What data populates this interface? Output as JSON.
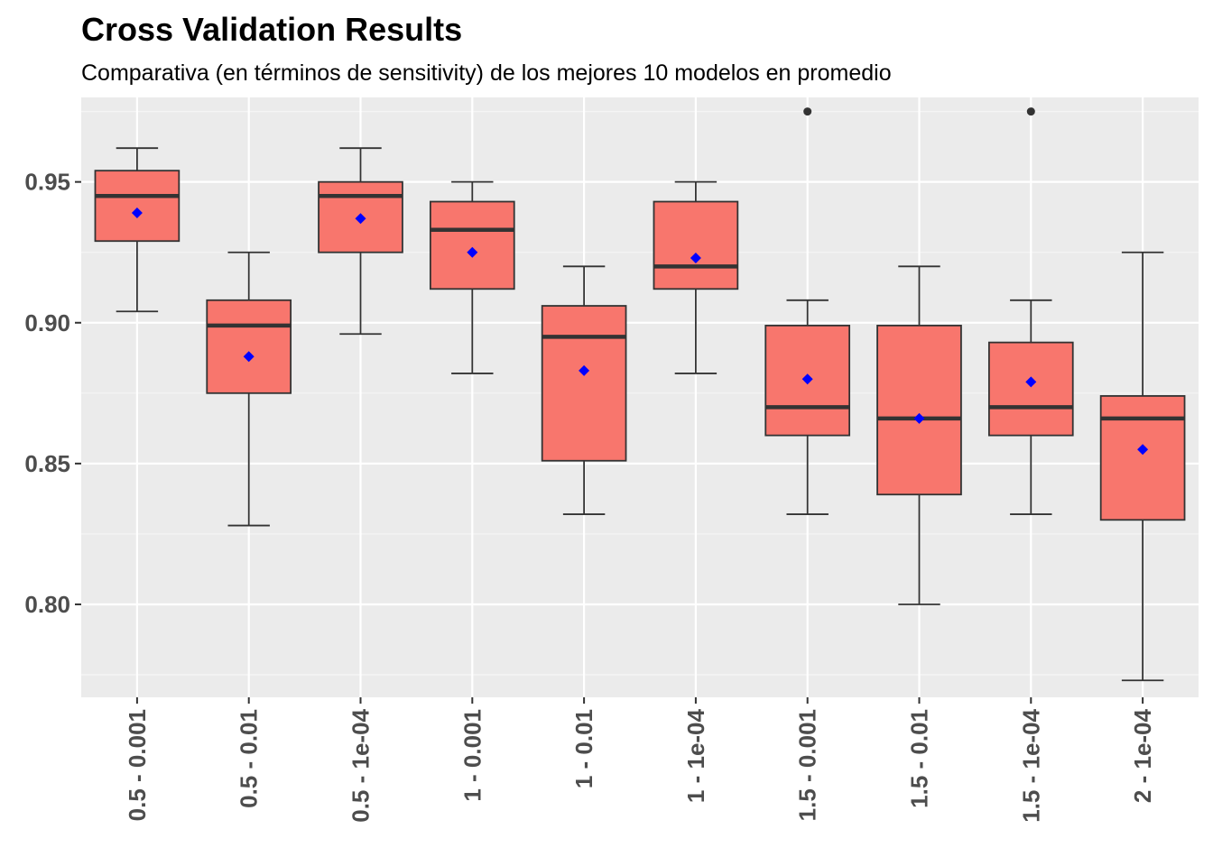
{
  "chart_data": {
    "type": "boxplot",
    "title": "Cross Validation Results",
    "subtitle": "Comparativa (en términos de sensitivity) de los mejores 10 modelos en promedio",
    "xlabel": "",
    "ylabel": "",
    "ylim": [
      0.767,
      0.98
    ],
    "y_ticks": [
      0.8,
      0.85,
      0.9,
      0.95
    ],
    "y_tick_labels": [
      "0.80",
      "0.85",
      "0.90",
      "0.95"
    ],
    "grid": true,
    "legend": "none",
    "categories": [
      "0.5 - 0.001",
      "0.5 - 0.01",
      "0.5 - 1e-04",
      "1 - 0.001",
      "1 - 0.01",
      "1 - 1e-04",
      "1.5 - 0.001",
      "1.5 - 0.01",
      "1.5 - 1e-04",
      "2 - 1e-04"
    ],
    "boxes": [
      {
        "min": 0.904,
        "q1": 0.929,
        "median": 0.945,
        "q3": 0.954,
        "max": 0.962,
        "mean": 0.939,
        "outliers": []
      },
      {
        "min": 0.828,
        "q1": 0.875,
        "median": 0.899,
        "q3": 0.908,
        "max": 0.925,
        "mean": 0.888,
        "outliers": []
      },
      {
        "min": 0.896,
        "q1": 0.925,
        "median": 0.945,
        "q3": 0.95,
        "max": 0.962,
        "mean": 0.937,
        "outliers": []
      },
      {
        "min": 0.882,
        "q1": 0.912,
        "median": 0.933,
        "q3": 0.943,
        "max": 0.95,
        "mean": 0.925,
        "outliers": []
      },
      {
        "min": 0.832,
        "q1": 0.851,
        "median": 0.895,
        "q3": 0.906,
        "max": 0.92,
        "mean": 0.883,
        "outliers": []
      },
      {
        "min": 0.882,
        "q1": 0.912,
        "median": 0.92,
        "q3": 0.943,
        "max": 0.95,
        "mean": 0.923,
        "outliers": []
      },
      {
        "min": 0.832,
        "q1": 0.86,
        "median": 0.87,
        "q3": 0.899,
        "max": 0.908,
        "mean": 0.88,
        "outliers": [
          0.975
        ]
      },
      {
        "min": 0.8,
        "q1": 0.839,
        "median": 0.866,
        "q3": 0.899,
        "max": 0.92,
        "mean": 0.866,
        "outliers": []
      },
      {
        "min": 0.832,
        "q1": 0.86,
        "median": 0.87,
        "q3": 0.893,
        "max": 0.908,
        "mean": 0.879,
        "outliers": [
          0.975
        ]
      },
      {
        "min": 0.773,
        "q1": 0.83,
        "median": 0.866,
        "q3": 0.874,
        "max": 0.925,
        "mean": 0.855,
        "outliers": []
      }
    ],
    "colors": {
      "box_fill": "#F8766D",
      "box_stroke": "#333333",
      "whisker": "#333333",
      "mean_marker": "#0000FF",
      "outlier": "#333333",
      "panel_bg": "#EBEBEB",
      "grid_major": "#FFFFFF",
      "grid_minor": "#F5F5F5"
    }
  }
}
